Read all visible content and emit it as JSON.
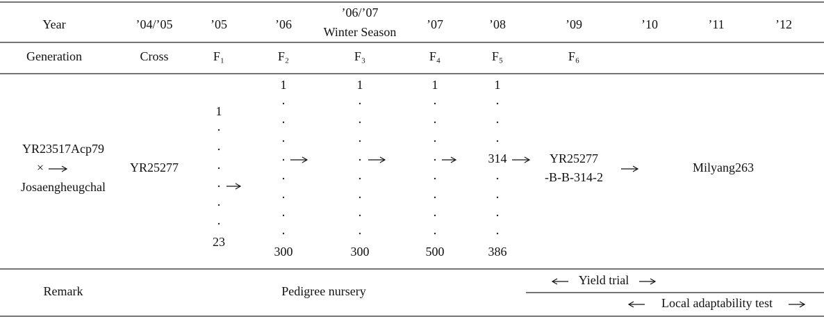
{
  "header": {
    "year_row": [
      "Year",
      "’04/’05",
      "’05",
      "’06",
      {
        "year": "’06/’07",
        "season": "Winter Season"
      },
      "’07",
      "’08",
      "’09",
      "’10",
      "’11",
      "’12"
    ],
    "generation_row": [
      "Generation",
      "Cross",
      "F₁",
      "F₂",
      "F₃",
      "F₄",
      "F₅",
      "F₆"
    ]
  },
  "body": {
    "cross": {
      "parent1": "YR23517Acp79",
      "symbol": "×",
      "parent2": "Josaengheugchal"
    },
    "cross_name": "YR25277",
    "lines": [
      {
        "first": 1,
        "last": 23
      },
      {
        "first": 1,
        "last": 300
      },
      {
        "first": 1,
        "last": 300
      },
      {
        "first": 1,
        "last": 500
      },
      {
        "first": 1,
        "selected": 314,
        "last": 386
      }
    ],
    "selection": [
      "YR25277",
      "-B-B-314-2"
    ],
    "variety": "Milyang263"
  },
  "remark": {
    "label": "Remark",
    "pedigree": "Pedigree nursery",
    "yield": "Yield trial",
    "local": "Local adaptability test"
  }
}
